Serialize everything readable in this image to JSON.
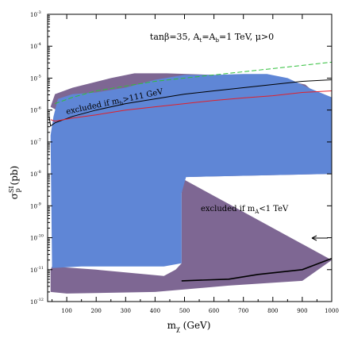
{
  "chart_data": {
    "type": "area",
    "title": "tanβ=35, A_t=A_b=1 TeV, μ>0",
    "xlabel": "m_χ (GeV)",
    "ylabel": "σ_p^SI (pb)",
    "xlim": [
      35,
      1000
    ],
    "ylim_log10": [
      -12,
      -3
    ],
    "x_ticks": [
      100,
      200,
      300,
      400,
      500,
      600,
      700,
      800,
      900,
      1000
    ],
    "x_tick_labels": [
      "100",
      "200",
      "300",
      "400",
      "500",
      "600",
      "700",
      "800",
      "900",
      "1000"
    ],
    "y_ticks_log10": [
      -12,
      -11,
      -10,
      -9,
      -8,
      -7,
      -6,
      -5,
      -4,
      -3
    ],
    "y_tick_labels": [
      "10",
      "10",
      "10",
      "10",
      "10",
      "10",
      "10",
      "10",
      "10",
      "10"
    ],
    "y_tick_exponents": [
      "-12",
      "-11",
      "-10",
      "-9",
      "-8",
      "-7",
      "-6",
      "-5",
      "-4",
      "-3"
    ],
    "grid": false,
    "colors": {
      "purple_region": "#7e6793",
      "blue_region": "#5f86d6",
      "red_curve": "#e0202a",
      "green_curve": "#2fbf3a",
      "black_curve": "#000000"
    },
    "annotations": {
      "top": "tanβ=35, A_t=A_b=1 TeV, μ>0",
      "mh": "excluded if m_h>111 GeV",
      "mA": "excluded if m_A<1 TeV"
    },
    "series": [
      {
        "kind": "region",
        "color": "purple",
        "points": [
          [
            45,
            -5.9
          ],
          [
            60,
            -5.5
          ],
          [
            120,
            -5.3
          ],
          [
            250,
            -5.0
          ],
          [
            330,
            -4.85
          ],
          [
            440,
            -4.85
          ],
          [
            600,
            -4.9
          ],
          [
            780,
            -4.95
          ],
          [
            910,
            -5.2
          ],
          [
            1000,
            -5.9
          ],
          [
            1000,
            -8.0
          ],
          [
            500,
            -8.1
          ],
          [
            490,
            -8.6
          ],
          [
            490,
            -10.8
          ],
          [
            470,
            -11.0
          ],
          [
            430,
            -11.2
          ],
          [
            200,
            -11.0
          ],
          [
            50,
            -10.9
          ],
          [
            45,
            -11.0
          ],
          [
            45,
            -11.7
          ],
          [
            100,
            -11.75
          ],
          [
            400,
            -11.7
          ],
          [
            650,
            -11.5
          ],
          [
            900,
            -11.35
          ],
          [
            1000,
            -10.7
          ]
        ]
      },
      {
        "kind": "region",
        "color": "blue",
        "points": [
          [
            45,
            -6.8
          ],
          [
            55,
            -6.2
          ],
          [
            70,
            -5.65
          ],
          [
            120,
            -5.5
          ],
          [
            200,
            -5.45
          ],
          [
            300,
            -5.3
          ],
          [
            400,
            -5.05
          ],
          [
            500,
            -4.9
          ],
          [
            600,
            -4.9
          ],
          [
            700,
            -4.87
          ],
          [
            780,
            -4.87
          ],
          [
            850,
            -5.0
          ],
          [
            920,
            -5.3
          ],
          [
            1000,
            -5.6
          ],
          [
            1000,
            -8.0
          ],
          [
            505,
            -8.1
          ],
          [
            490,
            -8.6
          ],
          [
            490,
            -10.8
          ],
          [
            430,
            -10.9
          ],
          [
            300,
            -10.9
          ],
          [
            150,
            -10.9
          ],
          [
            50,
            -10.95
          ]
        ]
      },
      {
        "kind": "line",
        "color": "green",
        "dashed": true,
        "points": [
          [
            60,
            -5.8
          ],
          [
            120,
            -5.6
          ],
          [
            200,
            -5.4
          ],
          [
            300,
            -5.25
          ],
          [
            400,
            -5.1
          ],
          [
            500,
            -5.0
          ],
          [
            600,
            -4.9
          ],
          [
            700,
            -4.8
          ],
          [
            800,
            -4.7
          ],
          [
            900,
            -4.6
          ],
          [
            1000,
            -4.5
          ]
        ]
      },
      {
        "kind": "line",
        "color": "black",
        "points": [
          [
            40,
            -6.2
          ],
          [
            45,
            -6.5
          ],
          [
            60,
            -6.4
          ],
          [
            120,
            -6.2
          ],
          [
            200,
            -6.0
          ],
          [
            300,
            -5.8
          ],
          [
            400,
            -5.65
          ],
          [
            500,
            -5.5
          ],
          [
            600,
            -5.4
          ],
          [
            700,
            -5.3
          ],
          [
            800,
            -5.2
          ],
          [
            900,
            -5.1
          ],
          [
            1000,
            -5.05
          ]
        ]
      },
      {
        "kind": "line",
        "color": "red",
        "points": [
          [
            45,
            -6.3
          ],
          [
            60,
            -6.35
          ],
          [
            120,
            -6.25
          ],
          [
            200,
            -6.15
          ],
          [
            300,
            -6.0
          ],
          [
            400,
            -5.9
          ],
          [
            500,
            -5.8
          ],
          [
            600,
            -5.7
          ],
          [
            700,
            -5.62
          ],
          [
            800,
            -5.55
          ],
          [
            900,
            -5.45
          ],
          [
            1000,
            -5.4
          ]
        ]
      },
      {
        "kind": "boundary",
        "color": "black",
        "points": [
          [
            490,
            -11.35
          ],
          [
            650,
            -11.3
          ],
          [
            750,
            -11.15
          ],
          [
            900,
            -11.0
          ],
          [
            1000,
            -10.65
          ]
        ]
      }
    ]
  }
}
